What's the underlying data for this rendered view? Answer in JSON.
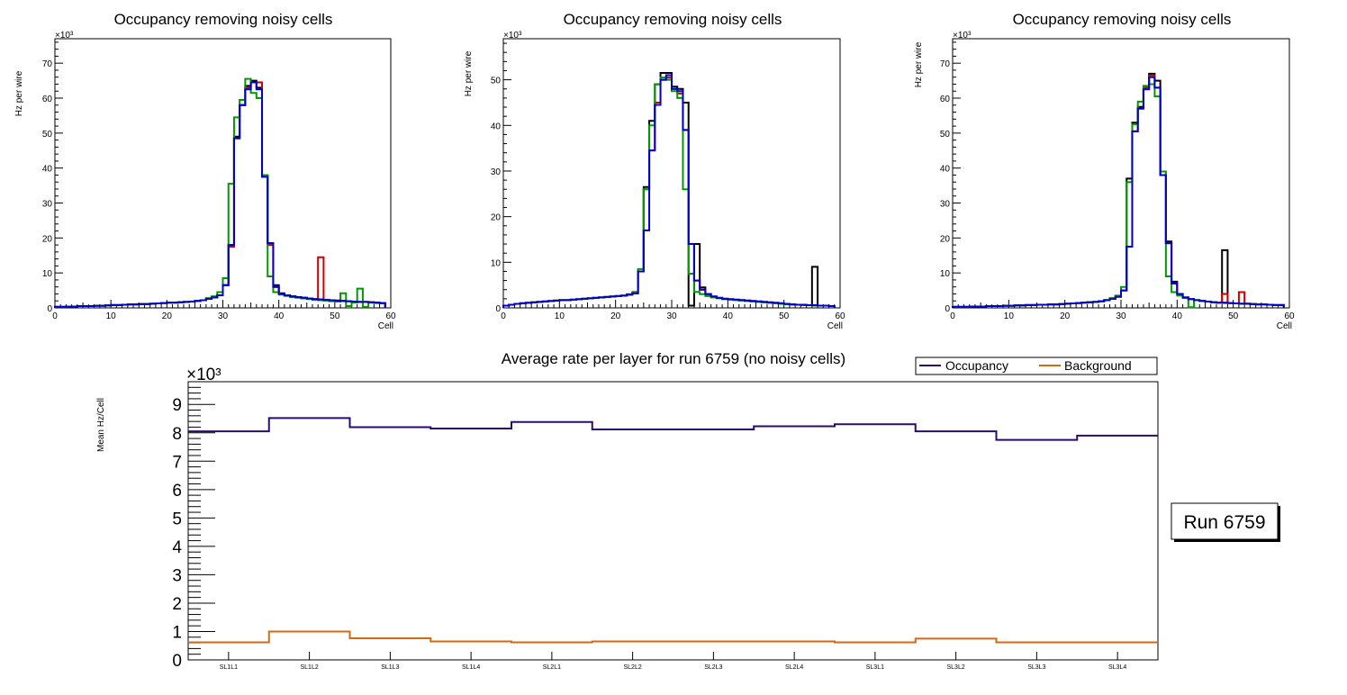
{
  "chart_data": [
    {
      "type": "step-histogram",
      "title": "Occupancy removing noisy cells",
      "xlabel": "Cell",
      "ylabel": "Hz per wire",
      "y_exponent_label": "×10³",
      "y_exponent": "3",
      "xlim": [
        0,
        60
      ],
      "ylim": [
        0,
        77
      ],
      "x_ticks": [
        0,
        10,
        20,
        30,
        40,
        50,
        60
      ],
      "y_ticks": [
        0,
        10,
        20,
        30,
        40,
        50,
        60,
        70
      ],
      "bin_edges": [
        0,
        59
      ],
      "series": [
        {
          "name": "black",
          "color": "#000000",
          "values": [
            0.3,
            0.3,
            0.4,
            0.4,
            0.5,
            0.5,
            0.5,
            0.6,
            0.6,
            0.7,
            0.8,
            0.8,
            0.9,
            1.0,
            1.0,
            1.1,
            1.1,
            1.2,
            1.3,
            1.4,
            1.5,
            1.5,
            1.6,
            1.7,
            1.8,
            2.0,
            2.2,
            2.6,
            3.0,
            3.6,
            6.5,
            18.0,
            49.0,
            58.0,
            63.5,
            65.0,
            63.0,
            38.0,
            18.5,
            6.5,
            4.2,
            3.6,
            3.3,
            3.1,
            2.9,
            2.7,
            2.5,
            2.4,
            2.3,
            2.2,
            2.1,
            2.0,
            1.9,
            1.8,
            1.7,
            1.7,
            1.6,
            1.5,
            1.4
          ]
        },
        {
          "name": "red",
          "color": "#cc0000",
          "values": [
            0.3,
            0.3,
            0.4,
            0.4,
            0.5,
            0.5,
            0.5,
            0.6,
            0.6,
            0.7,
            0.8,
            0.8,
            0.9,
            1.0,
            1.0,
            1.1,
            1.1,
            1.2,
            1.3,
            1.4,
            1.5,
            1.5,
            1.6,
            1.7,
            1.8,
            2.0,
            2.2,
            2.6,
            3.0,
            3.6,
            6.5,
            17.5,
            48.5,
            58.0,
            63.0,
            64.5,
            64.5,
            37.5,
            18.0,
            6.0,
            4.0,
            3.6,
            3.3,
            3.1,
            2.9,
            2.7,
            2.5,
            14.5,
            2.3,
            2.2,
            2.1,
            2.0,
            1.9,
            1.8,
            1.7,
            1.7,
            1.6,
            1.5,
            1.4
          ]
        },
        {
          "name": "green",
          "color": "#009900",
          "values": [
            0.3,
            0.3,
            0.4,
            0.4,
            0.5,
            0.5,
            0.5,
            0.6,
            0.6,
            0.7,
            0.8,
            0.8,
            0.9,
            1.0,
            1.0,
            1.1,
            1.1,
            1.2,
            1.3,
            1.4,
            1.5,
            1.5,
            1.6,
            1.7,
            1.8,
            2.0,
            2.2,
            2.8,
            3.3,
            4.5,
            8.5,
            35.5,
            54.5,
            59.5,
            65.5,
            61.5,
            60.0,
            38.0,
            9.0,
            4.5,
            3.8,
            3.4,
            3.1,
            2.9,
            2.7,
            2.5,
            2.3,
            2.2,
            2.1,
            1.9,
            1.8,
            4.2,
            0.5,
            1.5,
            5.5,
            0.3,
            1.5,
            1.4,
            1.3
          ]
        },
        {
          "name": "blue",
          "color": "#0000cc",
          "values": [
            0.3,
            0.3,
            0.4,
            0.4,
            0.5,
            0.5,
            0.5,
            0.6,
            0.6,
            0.7,
            0.8,
            0.8,
            0.9,
            1.0,
            1.0,
            1.1,
            1.1,
            1.2,
            1.3,
            1.4,
            1.5,
            1.5,
            1.6,
            1.7,
            1.8,
            2.0,
            2.2,
            2.6,
            3.0,
            3.6,
            6.5,
            18.0,
            48.5,
            58.0,
            62.5,
            64.5,
            62.5,
            37.5,
            18.5,
            6.0,
            4.0,
            3.6,
            3.3,
            3.1,
            2.9,
            2.7,
            2.5,
            2.4,
            2.3,
            2.2,
            2.1,
            2.0,
            1.9,
            1.8,
            1.7,
            1.7,
            1.6,
            1.5,
            1.4
          ]
        }
      ]
    },
    {
      "type": "step-histogram",
      "title": "Occupancy removing noisy cells",
      "xlabel": "Cell",
      "ylabel": "Hz per wire",
      "y_exponent_label": "×10³",
      "y_exponent": "3",
      "xlim": [
        0,
        60
      ],
      "ylim": [
        0,
        59
      ],
      "x_ticks": [
        0,
        10,
        20,
        30,
        40,
        50,
        60
      ],
      "y_ticks": [
        0,
        10,
        20,
        30,
        40,
        50
      ],
      "series": [
        {
          "name": "black",
          "color": "#000000",
          "values": [
            0.5,
            0.7,
            0.9,
            1.0,
            1.1,
            1.2,
            1.3,
            1.4,
            1.5,
            1.6,
            1.7,
            1.7,
            1.8,
            1.9,
            2.0,
            2.1,
            2.2,
            2.3,
            2.4,
            2.5,
            2.6,
            2.7,
            2.9,
            3.2,
            8.0,
            26.5,
            41.0,
            49.0,
            51.5,
            51.5,
            48.5,
            48.0,
            45.0,
            0.5,
            14.0,
            4.5,
            3.0,
            2.5,
            2.2,
            2.0,
            1.9,
            1.8,
            1.7,
            1.6,
            1.5,
            1.4,
            1.3,
            1.2,
            1.1,
            1.0,
            0.9,
            0.8,
            0.7,
            0.7,
            0.6,
            9.0,
            0.5,
            0.5,
            0.4
          ]
        },
        {
          "name": "red",
          "color": "#cc0000",
          "values": [
            0.5,
            0.7,
            0.9,
            1.0,
            1.1,
            1.2,
            1.3,
            1.4,
            1.5,
            1.6,
            1.7,
            1.7,
            1.8,
            1.9,
            2.0,
            2.1,
            2.2,
            2.3,
            2.4,
            2.5,
            2.6,
            2.7,
            2.9,
            3.2,
            8.0,
            26.0,
            34.5,
            45.0,
            50.0,
            50.5,
            48.0,
            47.0,
            39.0,
            14.0,
            6.0,
            4.0,
            3.0,
            2.5,
            2.2,
            2.0,
            1.9,
            1.8,
            1.7,
            1.6,
            1.5,
            1.4,
            1.3,
            1.2,
            1.1,
            1.0,
            0.9,
            0.8,
            0.7,
            0.7,
            0.6,
            0.6,
            0.5,
            0.5,
            0.4
          ]
        },
        {
          "name": "green",
          "color": "#009900",
          "values": [
            0.5,
            0.7,
            0.9,
            1.0,
            1.1,
            1.2,
            1.3,
            1.4,
            1.5,
            1.6,
            1.7,
            1.7,
            1.8,
            1.9,
            2.0,
            2.1,
            2.2,
            2.3,
            2.4,
            2.5,
            2.6,
            2.7,
            3.0,
            3.5,
            8.5,
            26.0,
            40.0,
            49.0,
            50.5,
            50.0,
            47.5,
            46.0,
            26.0,
            7.5,
            3.5,
            3.0,
            2.6,
            2.3,
            2.1,
            1.9,
            1.8,
            1.7,
            1.6,
            1.5,
            1.4,
            1.3,
            1.2,
            1.1,
            1.0,
            0.9,
            0.8,
            0.7,
            0.7,
            0.6,
            0.6,
            0.5,
            0.5,
            0.5,
            0.4
          ]
        },
        {
          "name": "blue",
          "color": "#0000cc",
          "values": [
            0.5,
            0.7,
            0.9,
            1.0,
            1.1,
            1.2,
            1.3,
            1.4,
            1.5,
            1.6,
            1.7,
            1.7,
            1.8,
            1.9,
            2.0,
            2.1,
            2.2,
            2.3,
            2.4,
            2.5,
            2.6,
            2.7,
            2.9,
            3.2,
            8.0,
            17.0,
            34.5,
            44.5,
            50.0,
            51.0,
            48.0,
            47.5,
            39.0,
            14.0,
            6.0,
            4.0,
            3.0,
            2.5,
            2.2,
            2.0,
            1.9,
            1.8,
            1.7,
            1.6,
            1.5,
            1.4,
            1.3,
            1.2,
            1.1,
            1.0,
            0.9,
            0.8,
            0.7,
            0.7,
            0.6,
            0.6,
            0.5,
            0.5,
            0.4
          ]
        }
      ]
    },
    {
      "type": "step-histogram",
      "title": "Occupancy removing noisy cells",
      "xlabel": "Cell",
      "ylabel": "Hz per wire",
      "y_exponent_label": "×10³",
      "y_exponent": "3",
      "xlim": [
        0,
        60
      ],
      "ylim": [
        0,
        77
      ],
      "x_ticks": [
        0,
        10,
        20,
        30,
        40,
        50,
        60
      ],
      "y_ticks": [
        0,
        10,
        20,
        30,
        40,
        50,
        60,
        70
      ],
      "series": [
        {
          "name": "black",
          "color": "#000000",
          "values": [
            0.3,
            0.3,
            0.3,
            0.4,
            0.4,
            0.4,
            0.5,
            0.5,
            0.5,
            0.6,
            0.6,
            0.7,
            0.7,
            0.8,
            0.8,
            0.9,
            0.9,
            1.0,
            1.0,
            1.1,
            1.2,
            1.3,
            1.4,
            1.5,
            1.6,
            1.7,
            1.9,
            2.2,
            2.6,
            3.2,
            5.0,
            37.0,
            53.0,
            57.5,
            63.0,
            67.0,
            65.0,
            38.0,
            19.0,
            7.5,
            4.0,
            3.0,
            2.5,
            2.2,
            2.0,
            1.8,
            1.6,
            1.5,
            16.5,
            1.4,
            1.3,
            1.2,
            1.2,
            1.1,
            1.0,
            1.0,
            0.9,
            0.8,
            0.8
          ]
        },
        {
          "name": "red",
          "color": "#cc0000",
          "values": [
            0.3,
            0.3,
            0.3,
            0.4,
            0.4,
            0.4,
            0.5,
            0.5,
            0.5,
            0.6,
            0.6,
            0.7,
            0.7,
            0.8,
            0.8,
            0.9,
            0.9,
            1.0,
            1.0,
            1.1,
            1.2,
            1.3,
            1.4,
            1.5,
            1.6,
            1.7,
            1.9,
            2.2,
            2.6,
            3.2,
            5.0,
            17.5,
            50.5,
            57.0,
            63.0,
            66.5,
            63.0,
            38.0,
            18.5,
            7.0,
            4.0,
            3.0,
            2.5,
            2.2,
            2.0,
            1.8,
            1.6,
            1.5,
            4.0,
            1.4,
            1.3,
            4.5,
            1.2,
            1.1,
            1.0,
            1.0,
            0.9,
            0.8,
            0.8
          ]
        },
        {
          "name": "green",
          "color": "#009900",
          "values": [
            0.3,
            0.3,
            0.3,
            0.4,
            0.4,
            0.4,
            0.5,
            0.5,
            0.5,
            0.6,
            0.6,
            0.7,
            0.7,
            0.8,
            0.8,
            0.9,
            0.9,
            1.0,
            1.0,
            1.1,
            1.2,
            1.3,
            1.4,
            1.5,
            1.6,
            1.7,
            1.9,
            2.3,
            2.8,
            3.5,
            6.0,
            36.0,
            52.5,
            59.0,
            63.5,
            64.0,
            60.5,
            39.0,
            9.0,
            4.5,
            3.5,
            2.8,
            0.2,
            2.3,
            2.0,
            1.8,
            1.6,
            1.5,
            1.4,
            1.4,
            1.3,
            1.2,
            1.2,
            1.1,
            1.0,
            1.0,
            0.9,
            0.8,
            0.8
          ]
        },
        {
          "name": "blue",
          "color": "#0000cc",
          "values": [
            0.3,
            0.3,
            0.3,
            0.4,
            0.4,
            0.4,
            0.5,
            0.5,
            0.5,
            0.6,
            0.6,
            0.7,
            0.7,
            0.8,
            0.8,
            0.9,
            0.9,
            1.0,
            1.0,
            1.1,
            1.2,
            1.3,
            1.4,
            1.5,
            1.6,
            1.7,
            1.9,
            2.2,
            2.6,
            3.2,
            5.0,
            17.5,
            50.5,
            57.0,
            62.5,
            66.0,
            63.0,
            38.0,
            18.5,
            7.0,
            4.0,
            3.0,
            2.5,
            2.2,
            2.0,
            1.8,
            1.6,
            1.5,
            1.5,
            1.4,
            1.3,
            1.2,
            1.2,
            1.1,
            1.0,
            1.0,
            0.9,
            0.8,
            0.8
          ]
        }
      ]
    },
    {
      "type": "step-line",
      "title": "Average rate per layer for run 6759 (no noisy cells)",
      "xlabel": "",
      "ylabel": "Mean Hz/Cell",
      "y_exponent_label": "×10³",
      "y_exponent": "3",
      "ylim": [
        0,
        9.8
      ],
      "y_ticks": [
        0,
        1,
        2,
        3,
        4,
        5,
        6,
        7,
        8,
        9
      ],
      "categories": [
        "SL1L1",
        "SL1L2",
        "SL1L3",
        "SL1L4",
        "SL2L1",
        "SL2L2",
        "SL2L3",
        "SL2L4",
        "SL3L1",
        "SL3L2",
        "SL3L3",
        "SL3L4"
      ],
      "series": [
        {
          "name": "Occupancy",
          "color": "#2a0a6e",
          "values": [
            8.05,
            8.52,
            8.2,
            8.15,
            8.38,
            8.12,
            8.12,
            8.23,
            8.3,
            8.05,
            7.75,
            7.9
          ]
        },
        {
          "name": "Background",
          "color": "#d46a10",
          "values": [
            0.62,
            1.0,
            0.76,
            0.65,
            0.62,
            0.65,
            0.65,
            0.65,
            0.62,
            0.75,
            0.62,
            0.62
          ]
        }
      ],
      "legend": [
        "Occupancy",
        "Background"
      ],
      "legend_position": "top-right"
    }
  ],
  "run_label": "Run 6759"
}
